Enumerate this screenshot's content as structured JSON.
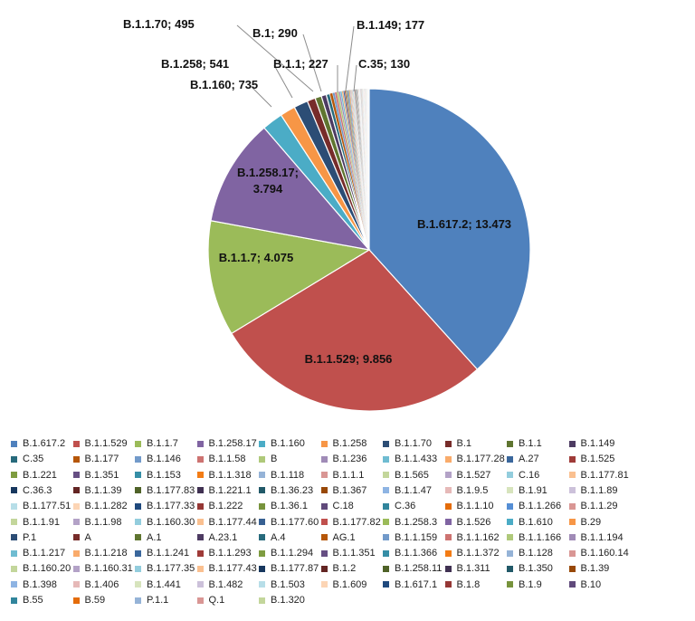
{
  "chart_data": {
    "type": "pie",
    "start": "12 o'clock, clockwise",
    "legend_position": "bottom",
    "slices": [
      {
        "name": "B.1.617.2",
        "value": 13473,
        "label": "B.1.617.2; 13.473",
        "color": "#4F81BD"
      },
      {
        "name": "B.1.1.529",
        "value": 9856,
        "label": "B.1.1.529; 9.856",
        "color": "#C0504D"
      },
      {
        "name": "B.1.1.7",
        "value": 4075,
        "label": "B.1.1.7; 4.075",
        "color": "#9BBB59"
      },
      {
        "name": "B.1.258.17",
        "value": 3794,
        "label": "B.1.258.17;\n3.794",
        "color": "#8064A2"
      },
      {
        "name": "B.1.160",
        "value": 735,
        "label": "B.1.160; 735",
        "color": "#4BACC6"
      },
      {
        "name": "B.1.258",
        "value": 541,
        "label": "B.1.258; 541",
        "color": "#F79646"
      },
      {
        "name": "B.1.1.70",
        "value": 495,
        "label": "B.1.1.70; 495",
        "color": "#2C4D75"
      },
      {
        "name": "B.1",
        "value": 290,
        "label": "B.1; 290",
        "color": "#772C2A"
      },
      {
        "name": "B.1.1",
        "value": 227,
        "label": "B.1.1; 227",
        "color": "#5F7530"
      },
      {
        "name": "B.1.149",
        "value": 177,
        "label": "B.1.149; 177",
        "color": "#4D3B62"
      },
      {
        "name": "C.35",
        "value": 130,
        "label": "C.35; 130",
        "color": "#276A7C"
      },
      {
        "name": "B.1.177",
        "value": 95,
        "color": "#B65708"
      },
      {
        "name": "B.1.146",
        "value": 80,
        "color": "#729ACA"
      },
      {
        "name": "B.1.1.58",
        "value": 72,
        "color": "#CD7371"
      },
      {
        "name": "B",
        "value": 65,
        "color": "#AFC97A"
      },
      {
        "name": "B.1.236",
        "value": 60,
        "color": "#A08BB7"
      },
      {
        "name": "B.1.1.433",
        "value": 55,
        "color": "#6FBCD1"
      },
      {
        "name": "B.1.177.28",
        "value": 50,
        "color": "#F9AB6B"
      },
      {
        "name": "A.27",
        "value": 46,
        "color": "#3A679C"
      },
      {
        "name": "B.1.525",
        "value": 42,
        "color": "#9F3B38"
      },
      {
        "name": "B.1.221",
        "value": 39,
        "color": "#7E9C40"
      },
      {
        "name": "B.1.351",
        "value": 36,
        "color": "#664F83"
      },
      {
        "name": "B.1.153",
        "value": 34,
        "color": "#358EA6"
      },
      {
        "name": "B.1.1.318",
        "value": 32,
        "color": "#F37C15"
      },
      {
        "name": "B.1.118",
        "value": 30,
        "color": "#95B3D7"
      },
      {
        "name": "B.1.1.1",
        "value": 28,
        "color": "#D99694"
      },
      {
        "name": "B.1.565",
        "value": 27,
        "color": "#C3D69B"
      },
      {
        "name": "B.1.527",
        "value": 26,
        "color": "#B3A2C7"
      },
      {
        "name": "C.16",
        "value": 25,
        "color": "#93CDDD"
      },
      {
        "name": "B.1.177.81",
        "value": 24,
        "color": "#FAC090"
      },
      {
        "name": "C.36.3",
        "value": 23,
        "color": "#17375E"
      },
      {
        "name": "B.1.1.39",
        "value": 22,
        "color": "#632523"
      },
      {
        "name": "B.1.177.83",
        "value": 21,
        "color": "#4F6228"
      },
      {
        "name": "B.1.221.1",
        "value": 20,
        "color": "#403152"
      },
      {
        "name": "B.1.36.23",
        "value": 19,
        "color": "#215968"
      },
      {
        "name": "B.1.367",
        "value": 18,
        "color": "#984807"
      },
      {
        "name": "B.1.1.47",
        "value": 17,
        "color": "#8EB4E3"
      },
      {
        "name": "B.1.9.5",
        "value": 16,
        "color": "#E6B9B8"
      },
      {
        "name": "B.1.91",
        "value": 15,
        "color": "#D7E4BD"
      },
      {
        "name": "B.1.1.89",
        "value": 15,
        "color": "#CCC1DA"
      },
      {
        "name": "B.1.177.51",
        "value": 14,
        "color": "#B7DEE8"
      },
      {
        "name": "B.1.1.282",
        "value": 14,
        "color": "#FCD5B5"
      },
      {
        "name": "B.1.177.33",
        "value": 13,
        "color": "#1F497D"
      },
      {
        "name": "B.1.222",
        "value": 13,
        "color": "#953735"
      },
      {
        "name": "B.1.36.1",
        "value": 12,
        "color": "#77933C"
      },
      {
        "name": "C.18",
        "value": 12,
        "color": "#604A7B"
      },
      {
        "name": "C.36",
        "value": 11,
        "color": "#31859C"
      },
      {
        "name": "B.1.1.10",
        "value": 11,
        "color": "#E46C0A"
      },
      {
        "name": "B.1.1.266",
        "value": 10,
        "color": "#558ED5"
      },
      {
        "name": "B.1.1.29",
        "value": 10,
        "color": "#D99694"
      },
      {
        "name": "B.1.1.91",
        "value": 10,
        "color": "#C3D69B"
      },
      {
        "name": "B.1.1.98",
        "value": 9,
        "color": "#B3A2C7"
      },
      {
        "name": "B.1.160.30",
        "value": 9,
        "color": "#93CDDD"
      },
      {
        "name": "B.1.177.44",
        "value": 9,
        "color": "#FAC090"
      },
      {
        "name": "B.1.177.60",
        "value": 8,
        "color": "#376092"
      },
      {
        "name": "B.1.177.82",
        "value": 8,
        "color": "#C0504D"
      },
      {
        "name": "B.1.258.3",
        "value": 8,
        "color": "#9BBB59"
      },
      {
        "name": "B.1.526",
        "value": 7,
        "color": "#8064A2"
      },
      {
        "name": "B.1.610",
        "value": 7,
        "color": "#4BACC6"
      },
      {
        "name": "B.29",
        "value": 7,
        "color": "#F79646"
      },
      {
        "name": "P.1",
        "value": 7,
        "color": "#2C4D75"
      },
      {
        "name": "A",
        "value": 6,
        "color": "#772C2A"
      },
      {
        "name": "A.1",
        "value": 6,
        "color": "#5F7530"
      },
      {
        "name": "A.23.1",
        "value": 6,
        "color": "#4D3B62"
      },
      {
        "name": "A.4",
        "value": 6,
        "color": "#276A7C"
      },
      {
        "name": "AG.1",
        "value": 5,
        "color": "#B65708"
      },
      {
        "name": "B.1.1.159",
        "value": 5,
        "color": "#729ACA"
      },
      {
        "name": "B.1.1.162",
        "value": 5,
        "color": "#CD7371"
      },
      {
        "name": "B.1.1.166",
        "value": 5,
        "color": "#AFC97A"
      },
      {
        "name": "B.1.1.194",
        "value": 5,
        "color": "#A08BB7"
      },
      {
        "name": "B.1.1.217",
        "value": 4,
        "color": "#6FBCD1"
      },
      {
        "name": "B.1.1.218",
        "value": 4,
        "color": "#F9AB6B"
      },
      {
        "name": "B.1.1.241",
        "value": 4,
        "color": "#3A679C"
      },
      {
        "name": "B.1.1.293",
        "value": 4,
        "color": "#9F3B38"
      },
      {
        "name": "B.1.1.294",
        "value": 4,
        "color": "#7E9C40"
      },
      {
        "name": "B.1.1.351",
        "value": 4,
        "color": "#664F83"
      },
      {
        "name": "B.1.1.366",
        "value": 3,
        "color": "#358EA6"
      },
      {
        "name": "B.1.1.372",
        "value": 3,
        "color": "#F37C15"
      },
      {
        "name": "B.1.128",
        "value": 3,
        "color": "#95B3D7"
      },
      {
        "name": "B.1.160.14",
        "value": 3,
        "color": "#D99694"
      },
      {
        "name": "B.1.160.20",
        "value": 3,
        "color": "#C3D69B"
      },
      {
        "name": "B.1.160.31",
        "value": 3,
        "color": "#B3A2C7"
      },
      {
        "name": "B.1.177.35",
        "value": 3,
        "color": "#93CDDD"
      },
      {
        "name": "B.1.177.43",
        "value": 2,
        "color": "#FAC090"
      },
      {
        "name": "B.1.177.87",
        "value": 2,
        "color": "#17375E"
      },
      {
        "name": "B.1.2",
        "value": 2,
        "color": "#632523"
      },
      {
        "name": "B.1.258.11",
        "value": 2,
        "color": "#4F6228"
      },
      {
        "name": "B.1.311",
        "value": 2,
        "color": "#403152"
      },
      {
        "name": "B.1.350",
        "value": 2,
        "color": "#215968"
      },
      {
        "name": "B.1.39",
        "value": 2,
        "color": "#984807"
      },
      {
        "name": "B.1.398",
        "value": 2,
        "color": "#8EB4E3"
      },
      {
        "name": "B.1.406",
        "value": 1,
        "color": "#E6B9B8"
      },
      {
        "name": "B.1.441",
        "value": 1,
        "color": "#D7E4BD"
      },
      {
        "name": "B.1.482",
        "value": 1,
        "color": "#CCC1DA"
      },
      {
        "name": "B.1.503",
        "value": 1,
        "color": "#B7DEE8"
      },
      {
        "name": "B.1.609",
        "value": 1,
        "color": "#FCD5B5"
      },
      {
        "name": "B.1.617.1",
        "value": 1,
        "color": "#1F497D"
      },
      {
        "name": "B.1.8",
        "value": 1,
        "color": "#953735"
      },
      {
        "name": "B.1.9",
        "value": 1,
        "color": "#77933C"
      },
      {
        "name": "B.10",
        "value": 1,
        "color": "#604A7B"
      },
      {
        "name": "B.55",
        "value": 1,
        "color": "#31859C"
      },
      {
        "name": "B.59",
        "value": 1,
        "color": "#E46C0A"
      },
      {
        "name": "P.1.1",
        "value": 1,
        "color": "#95B3D7"
      },
      {
        "name": "Q.1",
        "value": 1,
        "color": "#D99694"
      },
      {
        "name": "B.1.320",
        "value": 1,
        "color": "#C3D69B"
      }
    ]
  }
}
